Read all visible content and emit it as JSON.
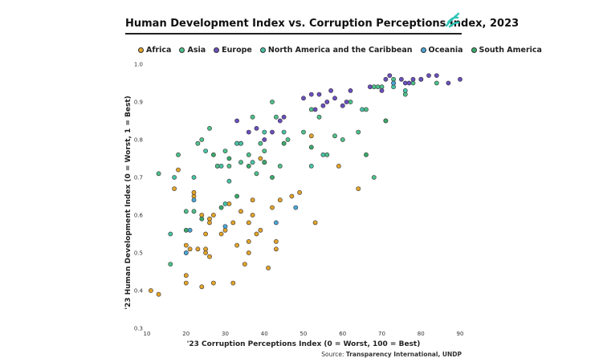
{
  "title": "Human Development Index vs. Corruption Perceptions Index, 2023",
  "source_label": "Source:",
  "source_text": "Transparency International, UNDP",
  "legend": [
    {
      "name": "Africa",
      "color": "#e3a32a"
    },
    {
      "name": "Asia",
      "color": "#4ec08a"
    },
    {
      "name": "Europe",
      "color": "#6b4fbf"
    },
    {
      "name": "North America and the Caribbean",
      "color": "#48c2a6"
    },
    {
      "name": "Oceania",
      "color": "#4aa6d6"
    },
    {
      "name": "South America",
      "color": "#3aaa6b"
    }
  ],
  "chart_data": {
    "type": "scatter",
    "title": "Human Development Index vs. Corruption Perceptions Index, 2023",
    "xlabel": "'23 Corruption Perceptions Index (0 = Worst, 100 = Best)",
    "ylabel": "'23 Human Development Index (0 = Worst, 1 = Best)",
    "xlim": [
      10,
      90
    ],
    "ylim": [
      0.3,
      1.0
    ],
    "xticks": [
      10,
      20,
      30,
      40,
      50,
      60,
      70,
      80,
      90
    ],
    "yticks": [
      0.3,
      0.4,
      0.5,
      0.6,
      0.7,
      0.8,
      0.9,
      1.0
    ],
    "grid": false,
    "legend_position": "top",
    "series": [
      {
        "name": "Africa",
        "points": [
          [
            11,
            0.4
          ],
          [
            13,
            0.39
          ],
          [
            17,
            0.67
          ],
          [
            18,
            0.72
          ],
          [
            20,
            0.52
          ],
          [
            20,
            0.44
          ],
          [
            20,
            0.42
          ],
          [
            20,
            0.5
          ],
          [
            21,
            0.51
          ],
          [
            22,
            0.65
          ],
          [
            22,
            0.66
          ],
          [
            23,
            0.51
          ],
          [
            24,
            0.6
          ],
          [
            24,
            0.41
          ],
          [
            25,
            0.5
          ],
          [
            25,
            0.51
          ],
          [
            25,
            0.55
          ],
          [
            26,
            0.49
          ],
          [
            26,
            0.59
          ],
          [
            26,
            0.58
          ],
          [
            27,
            0.42
          ],
          [
            27,
            0.6
          ],
          [
            28,
            0.73
          ],
          [
            29,
            0.55
          ],
          [
            30,
            0.56
          ],
          [
            31,
            0.63
          ],
          [
            32,
            0.42
          ],
          [
            32,
            0.58
          ],
          [
            33,
            0.52
          ],
          [
            34,
            0.61
          ],
          [
            35,
            0.47
          ],
          [
            36,
            0.5
          ],
          [
            36,
            0.53
          ],
          [
            36,
            0.58
          ],
          [
            37,
            0.64
          ],
          [
            37,
            0.6
          ],
          [
            38,
            0.55
          ],
          [
            39,
            0.56
          ],
          [
            39,
            0.75
          ],
          [
            40,
            0.74
          ],
          [
            41,
            0.46
          ],
          [
            42,
            0.62
          ],
          [
            43,
            0.51
          ],
          [
            43,
            0.53
          ],
          [
            44,
            0.64
          ],
          [
            47,
            0.65
          ],
          [
            49,
            0.66
          ],
          [
            52,
            0.81
          ],
          [
            53,
            0.58
          ],
          [
            59,
            0.73
          ],
          [
            64,
            0.67
          ],
          [
            71,
            0.85
          ]
        ]
      },
      {
        "name": "Asia",
        "points": [
          [
            13,
            0.71
          ],
          [
            16,
            0.47
          ],
          [
            18,
            0.76
          ],
          [
            20,
            0.61
          ],
          [
            22,
            0.61
          ],
          [
            23,
            0.79
          ],
          [
            24,
            0.8
          ],
          [
            26,
            0.83
          ],
          [
            28,
            0.73
          ],
          [
            30,
            0.77
          ],
          [
            31,
            0.73
          ],
          [
            33,
            0.79
          ],
          [
            34,
            0.74
          ],
          [
            36,
            0.76
          ],
          [
            37,
            0.86
          ],
          [
            38,
            0.71
          ],
          [
            39,
            0.79
          ],
          [
            40,
            0.77
          ],
          [
            42,
            0.9
          ],
          [
            43,
            0.86
          ],
          [
            44,
            0.73
          ],
          [
            46,
            0.8
          ],
          [
            50,
            0.82
          ],
          [
            52,
            0.88
          ],
          [
            54,
            0.86
          ],
          [
            56,
            0.76
          ],
          [
            58,
            0.81
          ],
          [
            60,
            0.8
          ],
          [
            62,
            0.9
          ],
          [
            64,
            0.82
          ],
          [
            66,
            0.88
          ],
          [
            68,
            0.7
          ],
          [
            68,
            0.94
          ],
          [
            69,
            0.94
          ],
          [
            70,
            0.94
          ],
          [
            73,
            0.96
          ],
          [
            76,
            0.92
          ],
          [
            78,
            0.95
          ],
          [
            80,
            0.96
          ],
          [
            84,
            0.95
          ]
        ]
      },
      {
        "name": "Europe",
        "points": [
          [
            33,
            0.85
          ],
          [
            34,
            0.79
          ],
          [
            36,
            0.82
          ],
          [
            38,
            0.83
          ],
          [
            40,
            0.8
          ],
          [
            42,
            0.82
          ],
          [
            44,
            0.85
          ],
          [
            45,
            0.86
          ],
          [
            50,
            0.91
          ],
          [
            52,
            0.92
          ],
          [
            53,
            0.88
          ],
          [
            54,
            0.92
          ],
          [
            55,
            0.89
          ],
          [
            56,
            0.9
          ],
          [
            57,
            0.93
          ],
          [
            58,
            0.91
          ],
          [
            60,
            0.89
          ],
          [
            61,
            0.9
          ],
          [
            62,
            0.93
          ],
          [
            67,
            0.94
          ],
          [
            70,
            0.93
          ],
          [
            71,
            0.96
          ],
          [
            72,
            0.97
          ],
          [
            73,
            0.95
          ],
          [
            75,
            0.96
          ],
          [
            76,
            0.95
          ],
          [
            77,
            0.95
          ],
          [
            78,
            0.96
          ],
          [
            80,
            0.96
          ],
          [
            82,
            0.97
          ],
          [
            84,
            0.97
          ],
          [
            87,
            0.95
          ],
          [
            90,
            0.96
          ]
        ]
      },
      {
        "name": "North America and the Caribbean",
        "points": [
          [
            16,
            0.55
          ],
          [
            17,
            0.7
          ],
          [
            22,
            0.7
          ],
          [
            25,
            0.77
          ],
          [
            29,
            0.73
          ],
          [
            30,
            0.63
          ],
          [
            31,
            0.69
          ],
          [
            33,
            0.79
          ],
          [
            34,
            0.79
          ],
          [
            37,
            0.74
          ],
          [
            40,
            0.82
          ],
          [
            45,
            0.82
          ],
          [
            52,
            0.73
          ],
          [
            55,
            0.76
          ],
          [
            65,
            0.88
          ],
          [
            73,
            0.94
          ],
          [
            76,
            0.93
          ]
        ]
      },
      {
        "name": "Oceania",
        "points": [
          [
            20,
            0.5
          ],
          [
            21,
            0.56
          ],
          [
            22,
            0.64
          ],
          [
            30,
            0.57
          ],
          [
            43,
            0.58
          ],
          [
            48,
            0.62
          ],
          [
            73,
            0.95
          ]
        ]
      },
      {
        "name": "South America",
        "points": [
          [
            20,
            0.56
          ],
          [
            24,
            0.59
          ],
          [
            27,
            0.76
          ],
          [
            29,
            0.62
          ],
          [
            31,
            0.75
          ],
          [
            33,
            0.65
          ],
          [
            36,
            0.73
          ],
          [
            40,
            0.74
          ],
          [
            42,
            0.7
          ],
          [
            45,
            0.79
          ],
          [
            52,
            0.78
          ],
          [
            66,
            0.76
          ],
          [
            71,
            0.85
          ]
        ]
      }
    ]
  }
}
